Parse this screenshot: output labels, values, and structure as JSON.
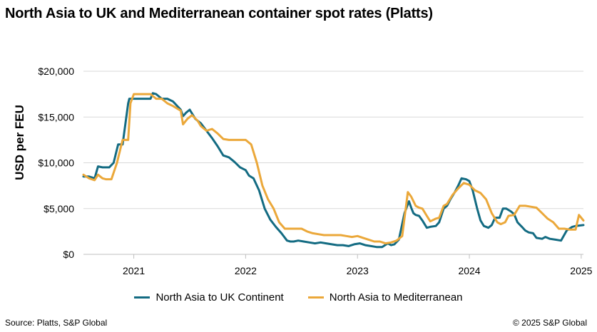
{
  "chart_data": {
    "type": "line",
    "title": "North Asia to UK and Mediterranean container spot rates (Platts)",
    "xlabel": "",
    "ylabel": "USD per FEU",
    "ylim": [
      0,
      20000
    ],
    "xlim": [
      2020.55,
      2025.02
    ],
    "y_ticks": [
      0,
      5000,
      10000,
      15000,
      20000
    ],
    "y_tick_labels": [
      "$0",
      "$5,000",
      "$10,000",
      "$15,000",
      "$20,000"
    ],
    "x_ticks": [
      2021,
      2022,
      2023,
      2024,
      2025
    ],
    "x_tick_labels": [
      "2021",
      "2022",
      "2023",
      "2024",
      "2025"
    ],
    "legend_position": "bottom",
    "series": [
      {
        "name": "North Asia to UK Continent",
        "color": "#136b82",
        "x": [
          2020.55,
          2020.6,
          2020.65,
          2020.68,
          2020.72,
          2020.78,
          2020.82,
          2020.86,
          2020.9,
          2020.95,
          2020.96,
          2020.97,
          2021.0,
          2021.05,
          2021.1,
          2021.15,
          2021.17,
          2021.2,
          2021.25,
          2021.3,
          2021.35,
          2021.42,
          2021.44,
          2021.47,
          2021.5,
          2021.55,
          2021.6,
          2021.65,
          2021.7,
          2021.75,
          2021.8,
          2021.85,
          2021.9,
          2021.95,
          2022.0,
          2022.03,
          2022.07,
          2022.12,
          2022.17,
          2022.22,
          2022.27,
          2022.32,
          2022.37,
          2022.4,
          2022.43,
          2022.47,
          2022.52,
          2022.57,
          2022.62,
          2022.67,
          2022.72,
          2022.77,
          2022.82,
          2022.87,
          2022.92,
          2022.97,
          2023.02,
          2023.07,
          2023.12,
          2023.17,
          2023.22,
          2023.27,
          2023.3,
          2023.33,
          2023.37,
          2023.42,
          2023.46,
          2023.48,
          2023.5,
          2023.52,
          2023.55,
          2023.58,
          2023.62,
          2023.65,
          2023.7,
          2023.73,
          2023.77,
          2023.8,
          2023.83,
          2023.87,
          2023.9,
          2023.93,
          2023.97,
          2024.0,
          2024.03,
          2024.07,
          2024.1,
          2024.13,
          2024.17,
          2024.2,
          2024.23,
          2024.27,
          2024.3,
          2024.33,
          2024.37,
          2024.4,
          2024.43,
          2024.47,
          2024.5,
          2024.53,
          2024.57,
          2024.6,
          2024.65,
          2024.68,
          2024.72,
          2024.77,
          2024.82,
          2024.87,
          2024.92,
          2024.95,
          2025.02
        ],
        "values": [
          8500,
          8500,
          8300,
          9600,
          9500,
          9500,
          10000,
          12000,
          12000,
          16500,
          17000,
          17000,
          17000,
          17000,
          17000,
          17000,
          17600,
          17500,
          17000,
          17000,
          16700,
          15800,
          15100,
          15500,
          15800,
          14800,
          14300,
          13500,
          12700,
          11800,
          10800,
          10600,
          10100,
          9500,
          9200,
          8600,
          8300,
          7000,
          5000,
          3800,
          3000,
          2300,
          1500,
          1400,
          1400,
          1500,
          1400,
          1300,
          1200,
          1300,
          1200,
          1100,
          1000,
          1000,
          900,
          1100,
          1200,
          1000,
          900,
          800,
          800,
          1200,
          1000,
          1100,
          1600,
          4500,
          5800,
          5100,
          4500,
          4300,
          4200,
          3700,
          2900,
          3000,
          3100,
          3500,
          5000,
          5300,
          6000,
          6800,
          7500,
          8300,
          8200,
          8000,
          7000,
          5000,
          3700,
          3100,
          2900,
          3200,
          4000,
          4000,
          5000,
          5000,
          4700,
          4400,
          3500,
          3000,
          2600,
          2400,
          2300,
          1800,
          1700,
          1900,
          1700,
          1600,
          1500,
          2600,
          3000,
          3100,
          3200
        ]
      },
      {
        "name": "North Asia to Mediterranean",
        "color": "#eba83a",
        "x": [
          2020.55,
          2020.6,
          2020.65,
          2020.68,
          2020.72,
          2020.75,
          2020.8,
          2020.85,
          2020.9,
          2020.95,
          2020.97,
          2021.0,
          2021.05,
          2021.1,
          2021.15,
          2021.2,
          2021.25,
          2021.3,
          2021.35,
          2021.42,
          2021.44,
          2021.48,
          2021.52,
          2021.57,
          2021.6,
          2021.65,
          2021.7,
          2021.75,
          2021.8,
          2021.85,
          2021.9,
          2021.95,
          2022.0,
          2022.05,
          2022.1,
          2022.15,
          2022.2,
          2022.25,
          2022.3,
          2022.35,
          2022.4,
          2022.45,
          2022.5,
          2022.55,
          2022.6,
          2022.65,
          2022.7,
          2022.75,
          2022.8,
          2022.85,
          2022.9,
          2022.95,
          2023.0,
          2023.05,
          2023.1,
          2023.15,
          2023.2,
          2023.25,
          2023.3,
          2023.35,
          2023.4,
          2023.45,
          2023.48,
          2023.52,
          2023.55,
          2023.58,
          2023.62,
          2023.65,
          2023.7,
          2023.73,
          2023.77,
          2023.8,
          2023.85,
          2023.9,
          2023.95,
          2024.0,
          2024.05,
          2024.1,
          2024.15,
          2024.2,
          2024.25,
          2024.28,
          2024.32,
          2024.35,
          2024.4,
          2024.45,
          2024.5,
          2024.55,
          2024.6,
          2024.65,
          2024.7,
          2024.75,
          2024.8,
          2024.85,
          2024.9,
          2024.95,
          2024.98,
          2025.02
        ],
        "values": [
          8700,
          8300,
          8100,
          8700,
          8300,
          8200,
          8200,
          10000,
          12500,
          12500,
          16500,
          17500,
          17500,
          17500,
          17500,
          17000,
          17000,
          16500,
          16200,
          15700,
          14200,
          14800,
          15200,
          14600,
          14000,
          13500,
          13700,
          13200,
          12600,
          12500,
          12500,
          12500,
          12500,
          12000,
          10000,
          7500,
          6000,
          5000,
          3500,
          2800,
          2800,
          2800,
          2800,
          2500,
          2300,
          2200,
          2100,
          2100,
          2100,
          2100,
          2000,
          1900,
          2000,
          1800,
          1600,
          1400,
          1400,
          1200,
          1300,
          1500,
          2000,
          6800,
          6300,
          5300,
          5100,
          5000,
          4200,
          3600,
          3900,
          4000,
          5300,
          5500,
          6500,
          7200,
          7800,
          7600,
          7000,
          6700,
          6000,
          4500,
          3500,
          3300,
          3500,
          4200,
          4300,
          5300,
          5300,
          5200,
          5100,
          4500,
          3900,
          3500,
          2800,
          2800,
          2700,
          2700,
          4300,
          3700
        ]
      }
    ]
  },
  "footer": {
    "source": "Source: Platts, S&P Global",
    "copyright": "© 2025 S&P Global"
  }
}
